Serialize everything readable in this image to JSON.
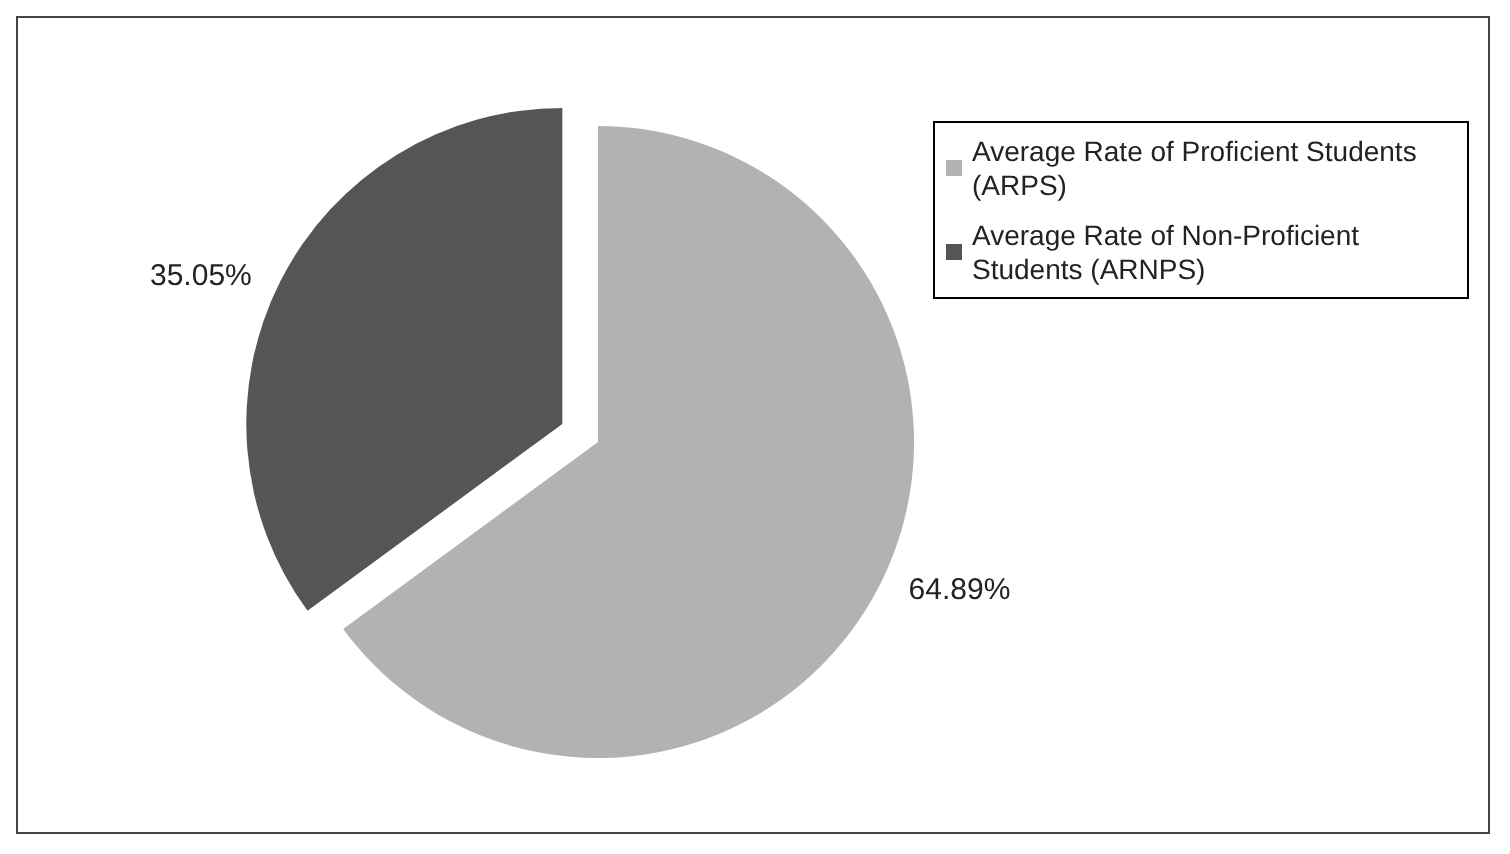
{
  "chart_data": {
    "type": "pie",
    "categories": [
      "Average Rate of Proficient Students (ARPS)",
      "Average Rate of Non-Proficient Students (ARNPS)"
    ],
    "values": [
      64.89,
      35.05
    ],
    "colors": [
      "#b2b2b2",
      "#555555"
    ],
    "value_labels": [
      "64.89%",
      "35.05%"
    ],
    "legend": "top right"
  }
}
